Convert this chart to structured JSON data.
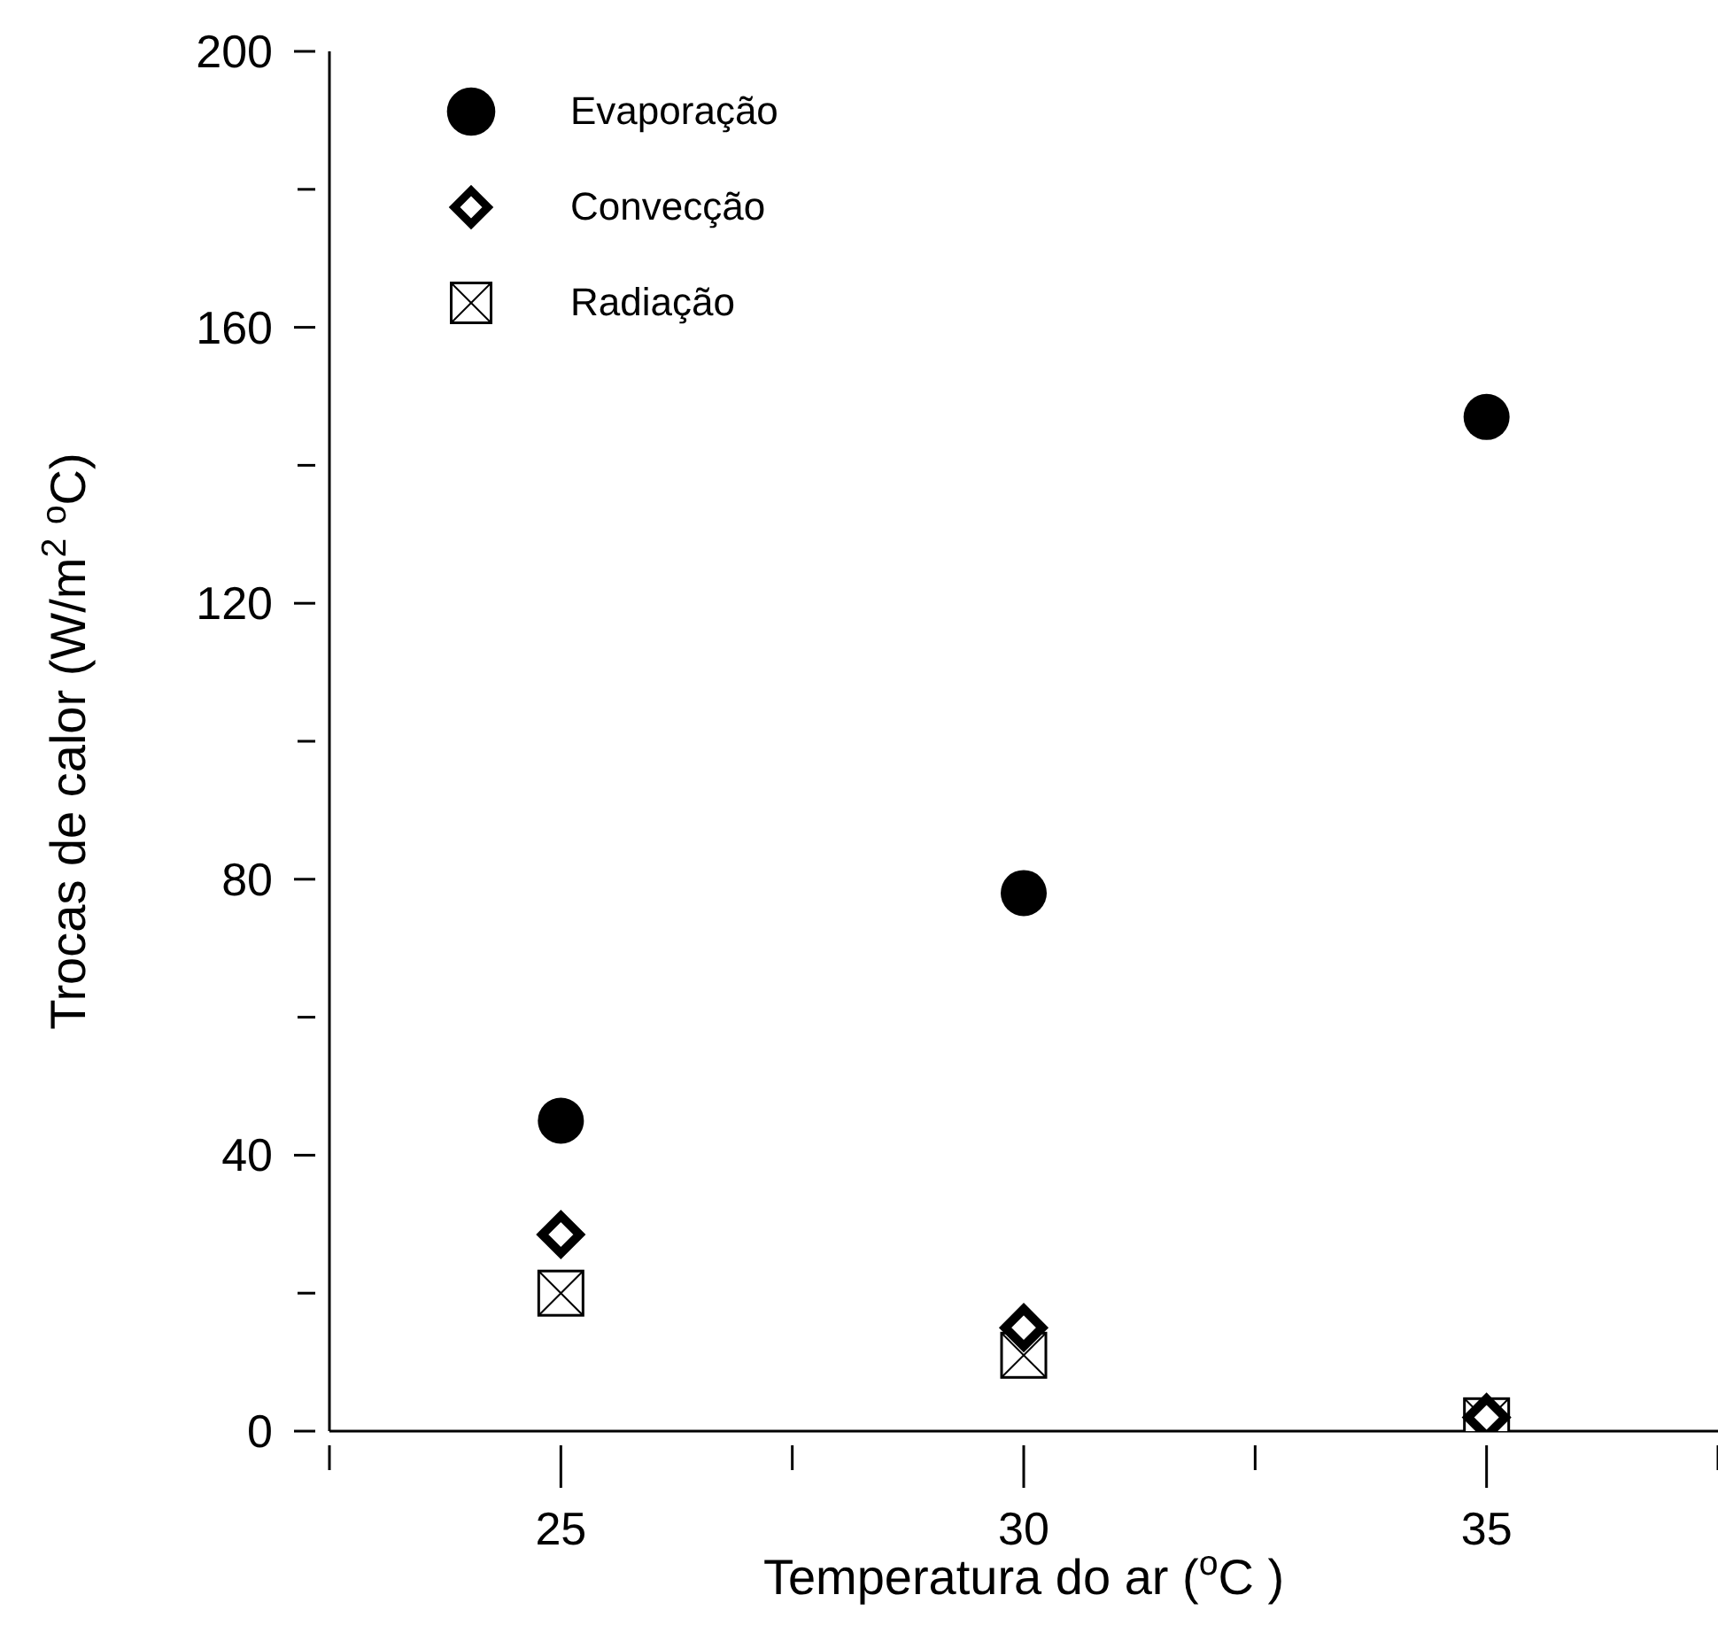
{
  "chart_data": {
    "type": "scatter",
    "xlabel": "Temperatura do ar ($^{o}$C )",
    "ylabel": "Trocas de  calor (W/m$^{2}$ $^{o}$C)",
    "x": [
      25,
      30,
      35
    ],
    "series": [
      {
        "name": "Evaporação",
        "color": "#000000",
        "marker": "circle",
        "values": [
          45,
          78,
          147
        ]
      },
      {
        "name": "Convecção",
        "color": "#000000",
        "marker": "diamond",
        "values": [
          28.5,
          15,
          2
        ]
      },
      {
        "name": "Radiação",
        "color": "#000000",
        "marker": "square",
        "values": [
          20,
          11,
          1.5
        ]
      }
    ],
    "xlim": [
      22.5,
      37.5
    ],
    "xticks": [
      {
        "value": 22.5,
        "label": null
      },
      25,
      {
        "value": 27.5,
        "label": null
      },
      30,
      {
        "value": 32.5,
        "label": null
      },
      35,
      {
        "value": 37.5,
        "label": null
      }
    ],
    "ylim": [
      0,
      200
    ],
    "yticks": [
      0,
      {
        "value": 20,
        "label": null
      },
      40,
      {
        "value": 60,
        "label": null
      },
      80,
      {
        "value": 100,
        "label": null
      },
      120,
      {
        "value": 140,
        "label": null
      },
      160,
      {
        "value": 180,
        "label": null
      },
      200
    ],
    "legend": "top left"
  }
}
